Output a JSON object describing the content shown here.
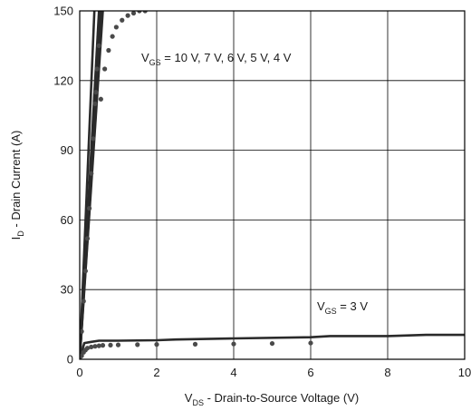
{
  "chart_data": {
    "type": "line",
    "title": "",
    "xlabel": "V_DS - Drain-to-Source Voltage (V)",
    "xlabel_parts": {
      "main": "V",
      "sub": "DS",
      "rest": " - Drain-to-Source Voltage (V)"
    },
    "ylabel": "I_D - Drain Current (A)",
    "ylabel_parts": {
      "main": "I",
      "sub": "D",
      "rest": " - Drain Current (A)"
    },
    "xlim": [
      0,
      10
    ],
    "ylim": [
      0,
      150
    ],
    "xticks": [
      0,
      2,
      4,
      6,
      8,
      10
    ],
    "yticks": [
      0,
      30,
      60,
      90,
      120,
      150
    ],
    "xtick_labels": [
      "0",
      "2",
      "4",
      "6",
      "8",
      "10"
    ],
    "ytick_labels": [
      "0",
      "30",
      "60",
      "90",
      "120",
      "150"
    ],
    "grid": true,
    "annotations": [
      {
        "main": "V",
        "sub": "GS",
        "rest": " = 10 V, 7 V, 6 V, 5 V, 4 V"
      },
      {
        "main": "V",
        "sub": "GS",
        "rest": " = 3 V"
      }
    ],
    "colors": {
      "line": "#2a2a2a",
      "dots": "#4a4a4a",
      "grid": "#000000"
    },
    "series": [
      {
        "style": "line",
        "x": [
          0,
          0.6
        ],
        "y": [
          0,
          150
        ]
      },
      {
        "style": "line",
        "x": [
          0,
          0.58
        ],
        "y": [
          0,
          150
        ]
      },
      {
        "style": "line",
        "x": [
          0,
          0.55
        ],
        "y": [
          0,
          150
        ]
      },
      {
        "style": "line",
        "x": [
          0,
          0.5
        ],
        "y": [
          0,
          150
        ]
      },
      {
        "style": "line",
        "x": [
          0,
          0.38
        ],
        "y": [
          0,
          150
        ]
      },
      {
        "style": "line",
        "x": [
          0,
          0.12,
          0.3,
          0.5,
          1,
          2,
          2.5,
          4,
          6,
          6.5,
          8,
          9,
          10
        ],
        "y": [
          0,
          7,
          7.5,
          8,
          8,
          8.2,
          8.5,
          9,
          9.5,
          10,
          10,
          10.5,
          10.5
        ]
      },
      {
        "style": "dots",
        "x": [
          0,
          0.05,
          0.1,
          0.15,
          0.2,
          0.25,
          0.3,
          0.35,
          0.4,
          0.42,
          0.45,
          0.5,
          0.55,
          0.65,
          0.75,
          0.85,
          0.95,
          1.1,
          1.25,
          1.4,
          1.55,
          1.7
        ],
        "y": [
          0,
          12,
          25,
          38,
          52,
          65,
          80,
          95,
          110,
          115,
          125,
          135,
          112,
          125,
          133,
          139,
          143,
          146,
          148,
          149,
          150,
          150
        ]
      },
      {
        "style": "dots",
        "x": [
          0,
          0.05,
          0.1,
          0.15,
          0.2,
          0.3,
          0.4,
          0.5,
          0.6,
          0.8,
          1,
          1.5,
          2,
          3,
          4,
          5,
          6
        ],
        "y": [
          0,
          1.5,
          3,
          4,
          4.8,
          5.3,
          5.6,
          5.8,
          6,
          6.1,
          6.2,
          6.3,
          6.4,
          6.5,
          6.6,
          6.8,
          7
        ]
      }
    ]
  }
}
